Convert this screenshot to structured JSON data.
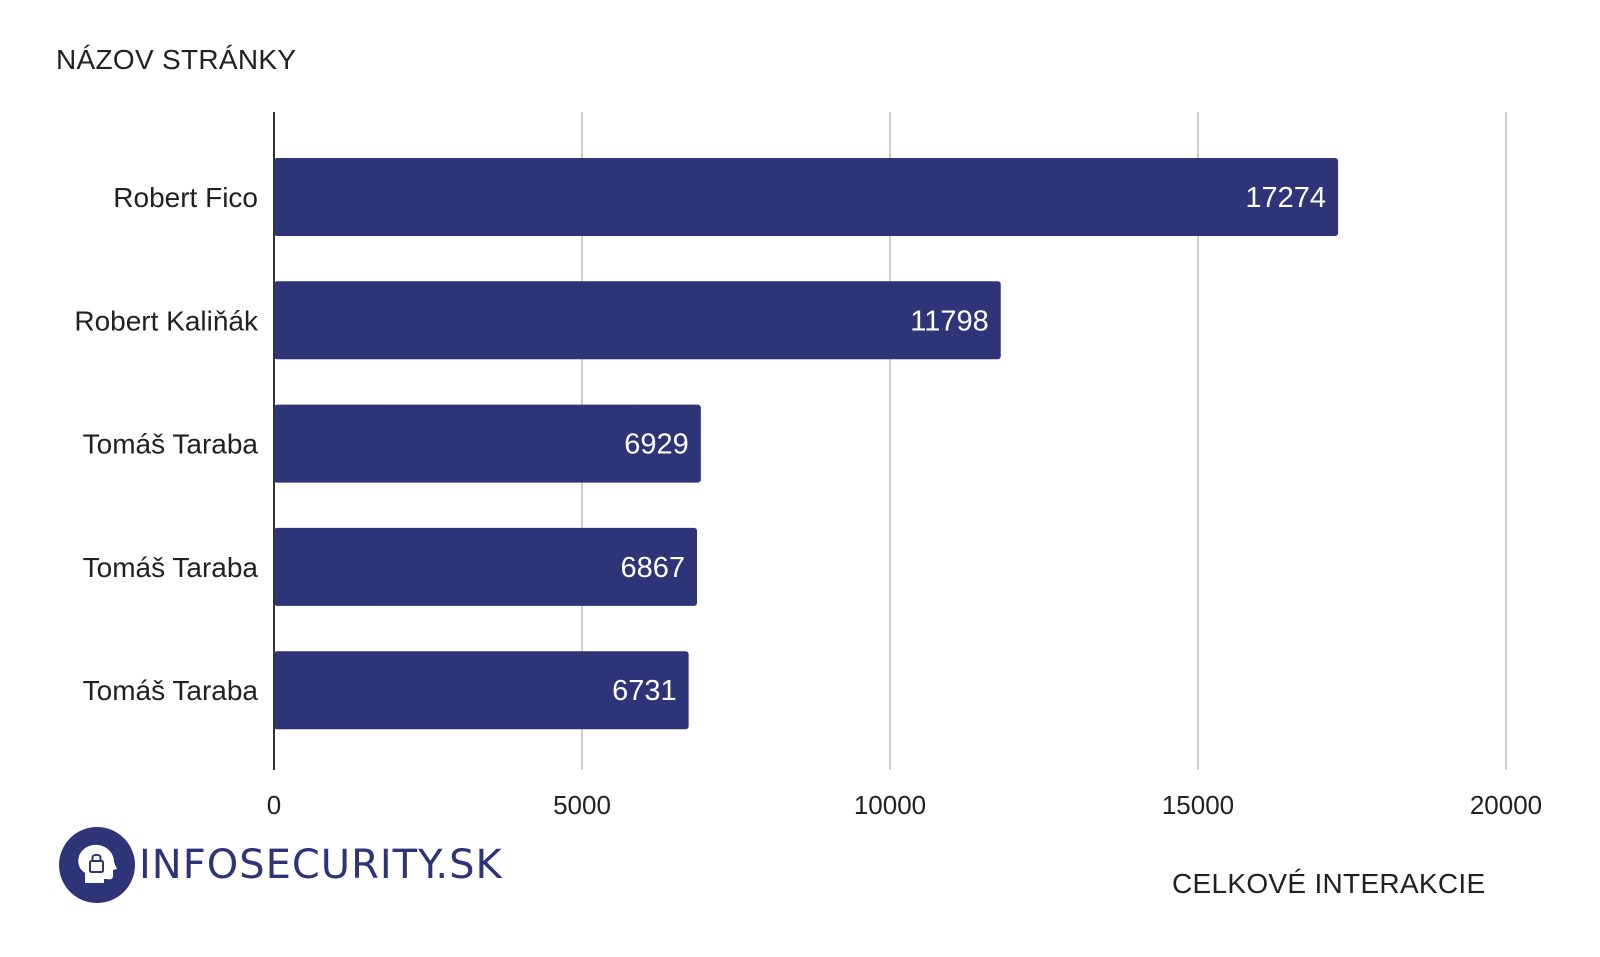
{
  "chart_data": {
    "type": "bar",
    "orientation": "horizontal",
    "ylabel": "NÁZOV STRÁNKY",
    "xlabel": "CELKOVÉ INTERAKCIE",
    "categories": [
      "Robert Fico",
      "Robert Kaliňák",
      "Tomáš Taraba",
      "Tomáš Taraba",
      "Tomáš Taraba"
    ],
    "values": [
      17274,
      11798,
      6929,
      6867,
      6731
    ],
    "xlim": [
      0,
      20000
    ],
    "xticks": [
      0,
      5000,
      10000,
      15000,
      20000
    ],
    "grid": "vertical",
    "bar_color": "#2d3478"
  },
  "logo": {
    "text": "INFOSECURITY.SK",
    "icon": "head-lock-icon",
    "color": "#2d3478"
  }
}
